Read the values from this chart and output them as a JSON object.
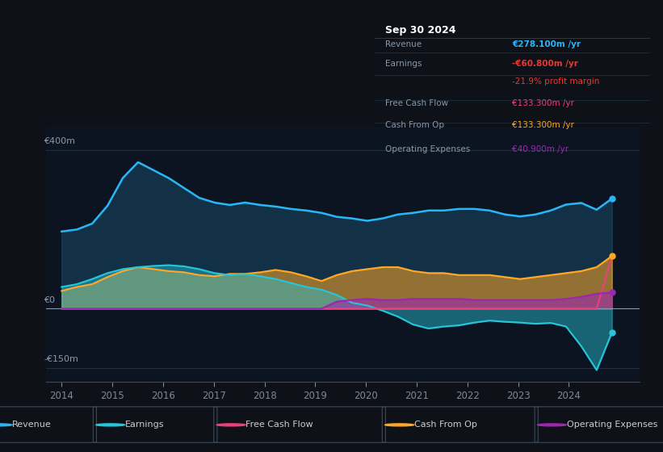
{
  "bg_color": "#0e1117",
  "chart_bg": "#0d1421",
  "title": "Sep 30 2024",
  "xlim_start": 2013.7,
  "xlim_end": 2025.4,
  "ylim_min": -185,
  "ylim_max": 460,
  "xticks": [
    2014,
    2015,
    2016,
    2017,
    2018,
    2019,
    2020,
    2021,
    2022,
    2023,
    2024
  ],
  "series_colors": {
    "revenue": "#29b6f6",
    "earnings": "#26c6da",
    "fcf": "#ec407a",
    "cashfromop": "#ffa726",
    "opex": "#9c27b0"
  },
  "revenue": [
    195,
    200,
    215,
    260,
    330,
    370,
    350,
    330,
    305,
    280,
    268,
    262,
    268,
    262,
    258,
    252,
    248,
    242,
    232,
    228,
    222,
    228,
    238,
    242,
    248,
    248,
    252,
    252,
    248,
    238,
    233,
    238,
    248,
    263,
    267,
    250,
    278
  ],
  "earnings": [
    55,
    62,
    75,
    90,
    100,
    105,
    108,
    110,
    107,
    100,
    90,
    85,
    88,
    82,
    75,
    65,
    55,
    48,
    35,
    15,
    8,
    -5,
    -20,
    -40,
    -50,
    -45,
    -42,
    -35,
    -30,
    -33,
    -35,
    -38,
    -36,
    -45,
    -95,
    -155,
    -60
  ],
  "fcf": [
    0,
    0,
    0,
    0,
    0,
    0,
    0,
    0,
    0,
    0,
    0,
    0,
    0,
    0,
    0,
    0,
    0,
    0,
    0,
    0,
    0,
    0,
    0,
    0,
    0,
    0,
    0,
    0,
    0,
    0,
    0,
    0,
    0,
    0,
    0,
    0,
    133
  ],
  "cashfromop": [
    45,
    55,
    62,
    80,
    95,
    105,
    100,
    95,
    92,
    85,
    82,
    88,
    88,
    92,
    98,
    92,
    82,
    70,
    85,
    95,
    100,
    105,
    105,
    95,
    90,
    90,
    85,
    85,
    85,
    80,
    75,
    80,
    85,
    90,
    95,
    105,
    133
  ],
  "opex": [
    0,
    0,
    0,
    0,
    0,
    0,
    0,
    0,
    0,
    0,
    0,
    0,
    0,
    0,
    0,
    0,
    0,
    0,
    18,
    22,
    25,
    22,
    22,
    25,
    25,
    25,
    25,
    22,
    22,
    22,
    22,
    22,
    22,
    25,
    30,
    38,
    41
  ],
  "info_box": {
    "date": "Sep 30 2024",
    "revenue_label": "Revenue",
    "revenue_val": "€278.100m /yr",
    "earnings_label": "Earnings",
    "earnings_val": "-€60.800m /yr",
    "margin_val": "-21.9% profit margin",
    "fcf_label": "Free Cash Flow",
    "fcf_val": "€133.300m /yr",
    "cop_label": "Cash From Op",
    "cop_val": "€133.300m /yr",
    "opex_label": "Operating Expenses",
    "opex_val": "€40.900m /yr"
  },
  "legend_items": [
    {
      "label": "Revenue",
      "color": "#29b6f6"
    },
    {
      "label": "Earnings",
      "color": "#26c6da"
    },
    {
      "label": "Free Cash Flow",
      "color": "#ec407a"
    },
    {
      "label": "Cash From Op",
      "color": "#ffa726"
    },
    {
      "label": "Operating Expenses",
      "color": "#9c27b0"
    }
  ],
  "ylabel_400": "€400m",
  "ylabel_0": "€0",
  "ylabel_neg150": "-€150m"
}
